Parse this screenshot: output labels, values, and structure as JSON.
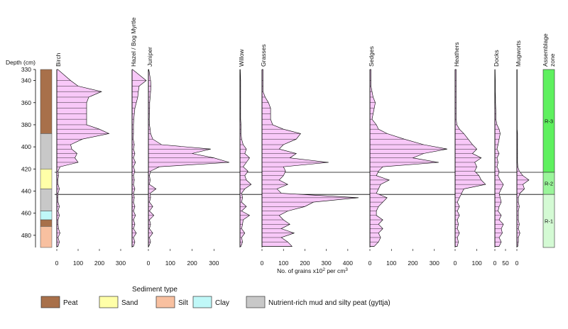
{
  "chart_data": {
    "type": "area",
    "x_axis_label": "No. of grains x10² per cm³",
    "depth_axis": {
      "label": "Depth (cm)",
      "ticks": [
        "330",
        "340",
        "360",
        "380",
        "400",
        "420",
        "440",
        "460",
        "480"
      ],
      "range": [
        330,
        491
      ]
    },
    "depths": [
      330,
      340,
      345,
      350,
      355,
      360,
      365,
      370,
      375,
      380,
      384,
      388,
      393,
      398,
      402,
      406,
      410,
      414,
      418,
      422,
      426,
      430,
      434,
      438,
      442,
      446,
      450,
      454,
      458,
      462,
      466,
      470,
      474,
      478,
      482,
      486,
      490
    ],
    "series": [
      {
        "name": "Birch",
        "xlim": [
          0,
          300
        ],
        "ticks": [
          "0",
          "100",
          "200",
          "300"
        ],
        "values": [
          5,
          65,
          100,
          210,
          150,
          140,
          140,
          140,
          140,
          140,
          200,
          245,
          120,
          65,
          70,
          95,
          85,
          100,
          15,
          6,
          8,
          5,
          6,
          12,
          6,
          5,
          6,
          12,
          6,
          12,
          6,
          6,
          8,
          15,
          6,
          12,
          6
        ]
      },
      {
        "name": "Hazel / Bog Myrtle",
        "xlim": [
          0,
          50
        ],
        "ticks": [],
        "values": [
          2,
          50,
          25,
          22,
          20,
          15,
          10,
          8,
          6,
          5,
          5,
          5,
          4,
          8,
          5,
          10,
          5,
          12,
          5,
          10,
          5,
          8,
          5,
          10,
          5,
          8,
          5,
          10,
          5,
          12,
          5,
          10,
          5,
          15,
          5,
          10,
          5
        ]
      },
      {
        "name": "Juniper",
        "xlim": [
          0,
          380
        ],
        "ticks": [
          "0",
          "100",
          "200",
          "300"
        ],
        "values": [
          2,
          10,
          12,
          10,
          8,
          6,
          6,
          5,
          4,
          5,
          8,
          10,
          20,
          60,
          285,
          200,
          300,
          370,
          50,
          10,
          5,
          8,
          5,
          35,
          8,
          10,
          5,
          20,
          5,
          25,
          5,
          10,
          5,
          20,
          5,
          10,
          2
        ]
      },
      {
        "name": "Willow",
        "xlim": [
          0,
          40
        ],
        "ticks": [],
        "values": [
          1,
          2,
          2,
          2,
          2,
          2,
          2,
          2,
          2,
          3,
          3,
          3,
          5,
          10,
          20,
          15,
          30,
          20,
          10,
          25,
          15,
          20,
          35,
          15,
          5,
          8,
          5,
          20,
          5,
          30,
          10,
          8,
          5,
          15,
          5,
          8,
          3
        ]
      },
      {
        "name": "Grasses",
        "xlim": [
          0,
          460
        ],
        "ticks": [
          "0",
          "100",
          "200",
          "300",
          "400"
        ],
        "values": [
          5,
          5,
          5,
          5,
          15,
          30,
          40,
          40,
          40,
          50,
          100,
          180,
          160,
          100,
          80,
          160,
          130,
          310,
          100,
          110,
          100,
          80,
          120,
          70,
          90,
          450,
          240,
          200,
          120,
          80,
          100,
          130,
          90,
          150,
          90,
          120,
          140
        ]
      },
      {
        "name": "Sedges",
        "xlim": [
          0,
          380
        ],
        "ticks": [
          "0",
          "100",
          "200",
          "300"
        ],
        "values": [
          5,
          5,
          5,
          10,
          15,
          25,
          20,
          15,
          10,
          30,
          40,
          80,
          160,
          250,
          360,
          250,
          200,
          320,
          60,
          40,
          30,
          90,
          50,
          40,
          30,
          80,
          60,
          40,
          30,
          30,
          60,
          40,
          60,
          40,
          50,
          40,
          20
        ]
      },
      {
        "name": "Heathers",
        "xlim": [
          0,
          160
        ],
        "ticks": [
          "0",
          "100"
        ],
        "values": [
          5,
          5,
          5,
          5,
          5,
          5,
          5,
          5,
          5,
          8,
          20,
          40,
          60,
          80,
          100,
          80,
          120,
          90,
          100,
          90,
          110,
          120,
          140,
          40,
          30,
          20,
          10,
          20,
          10,
          20,
          10,
          15,
          10,
          20,
          10,
          15,
          10
        ]
      },
      {
        "name": "Docks",
        "xlim": [
          0,
          80
        ],
        "ticks": [
          "0",
          "50"
        ],
        "values": [
          1,
          2,
          2,
          2,
          3,
          3,
          4,
          5,
          5,
          10,
          20,
          25,
          20,
          15,
          10,
          20,
          10,
          15,
          10,
          20,
          15,
          25,
          40,
          30,
          20,
          25,
          30,
          20,
          15,
          30,
          20,
          40,
          30,
          35,
          20,
          30,
          20
        ]
      },
      {
        "name": "Mugworts",
        "xlim": [
          0,
          40
        ],
        "ticks": [
          "0"
        ],
        "values": [
          1,
          1,
          1,
          1,
          1,
          1,
          1,
          1,
          1,
          1,
          1,
          2,
          2,
          2,
          2,
          2,
          2,
          2,
          3,
          8,
          20,
          40,
          20,
          25,
          10,
          5,
          5,
          8,
          5,
          5,
          5,
          8,
          5,
          10,
          5,
          5,
          3
        ]
      }
    ],
    "sediment": {
      "title": "Sediment type",
      "types": [
        {
          "key": "peat",
          "label": "Peat",
          "color": "#a8704a"
        },
        {
          "key": "sand",
          "label": "Sand",
          "color": "#ffffa8"
        },
        {
          "key": "silt",
          "label": "Silt",
          "color": "#f8c0a0"
        },
        {
          "key": "clay",
          "label": "Clay",
          "color": "#c0f8f8"
        },
        {
          "key": "gyttja",
          "label": "Nutrient-rich mud and silty peat (gyttja)",
          "color": "#c8c8c8"
        }
      ],
      "layers": [
        {
          "top": 330,
          "bottom": 388,
          "type": "peat"
        },
        {
          "top": 388,
          "bottom": 420,
          "type": "gyttja"
        },
        {
          "top": 420,
          "bottom": 438,
          "type": "sand"
        },
        {
          "top": 438,
          "bottom": 458,
          "type": "gyttja"
        },
        {
          "top": 458,
          "bottom": 466,
          "type": "clay"
        },
        {
          "top": 466,
          "bottom": 472,
          "type": "peat"
        },
        {
          "top": 472,
          "bottom": 491,
          "type": "silt"
        }
      ]
    },
    "zones": {
      "title": "Assemblage zone",
      "items": [
        {
          "label": "R-3",
          "top": 330,
          "bottom": 423,
          "color": "#5ef05e"
        },
        {
          "label": "R-2",
          "top": 423,
          "bottom": 443,
          "color": "#9af59a"
        },
        {
          "label": "R-1",
          "top": 443,
          "bottom": 491,
          "color": "#d4fad4"
        }
      ],
      "boundaries": [
        423,
        443
      ]
    },
    "fill_color": "#f8c8f8",
    "hatch": true
  }
}
